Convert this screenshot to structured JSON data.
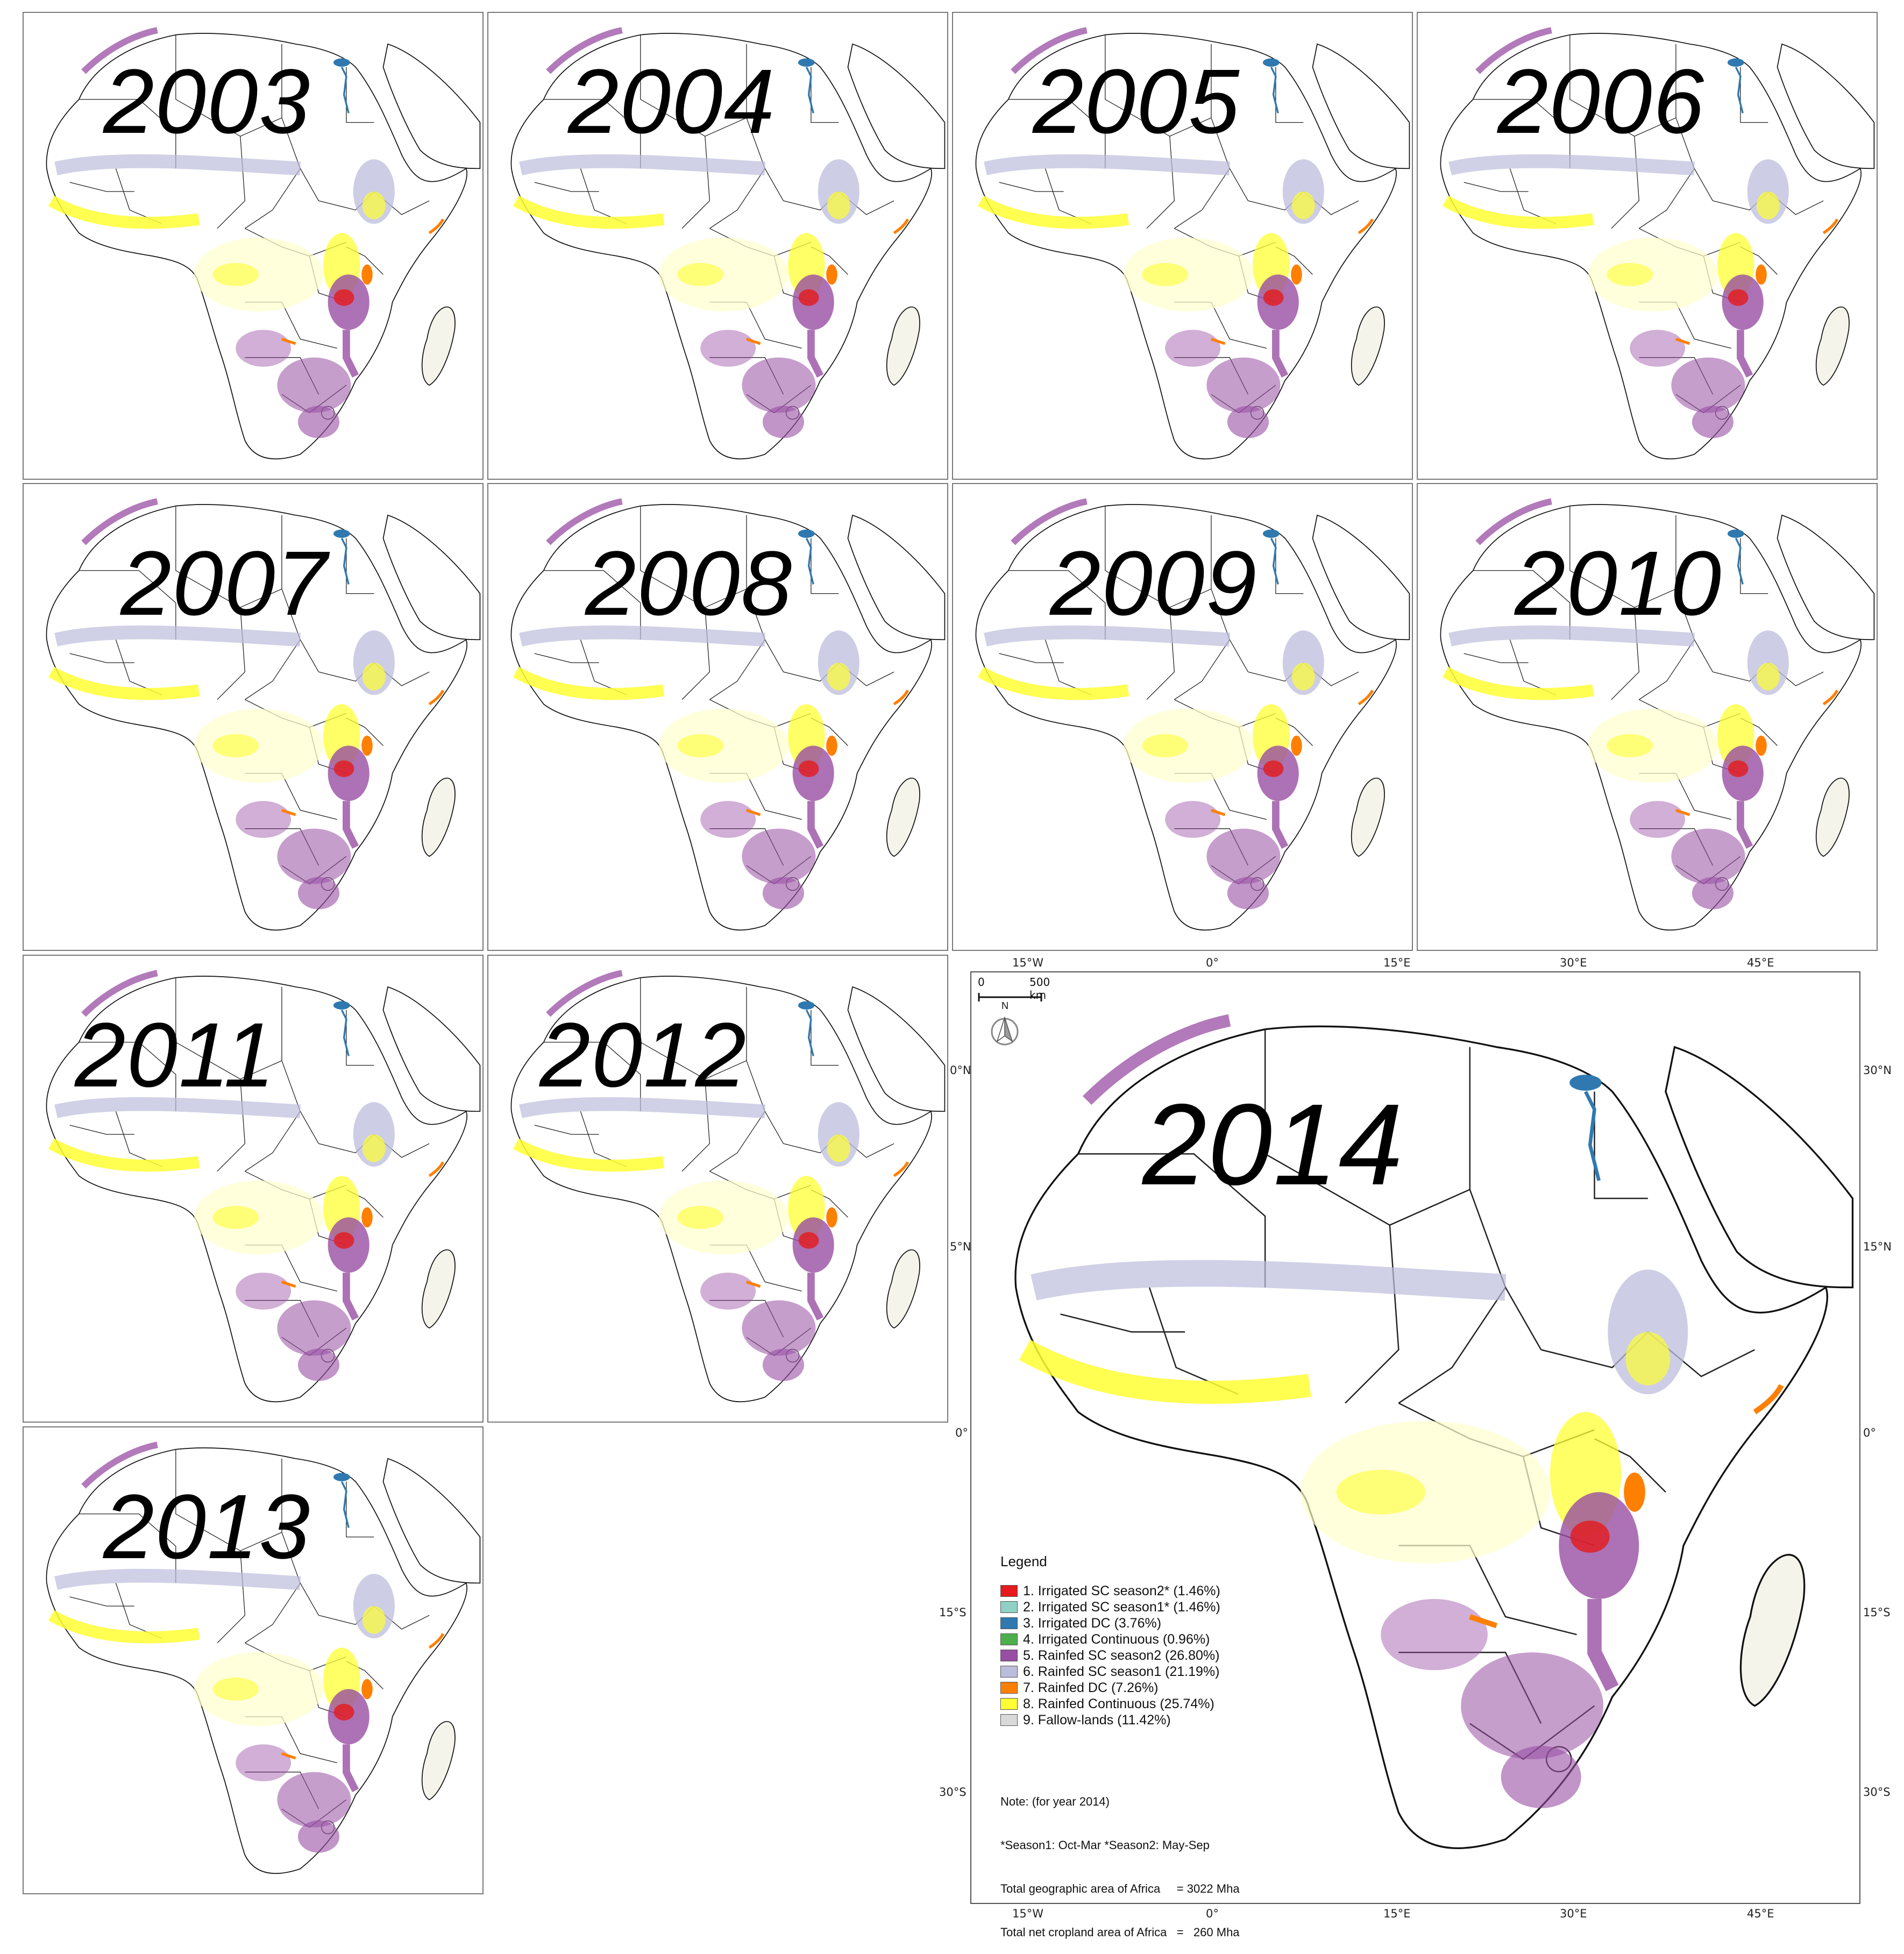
{
  "small_maps": [
    {
      "year": "2003"
    },
    {
      "year": "2004"
    },
    {
      "year": "2005"
    },
    {
      "year": "2006"
    },
    {
      "year": "2007"
    },
    {
      "year": "2008"
    },
    {
      "year": "2009"
    },
    {
      "year": "2010"
    },
    {
      "year": "2011"
    },
    {
      "year": "2012"
    },
    {
      "year": "2013"
    }
  ],
  "main_map": {
    "year": "2014",
    "scale": {
      "zero": "0",
      "distance": "500 km"
    },
    "north_label": "N",
    "lon_ticks": [
      "15°W",
      "0°",
      "15°E",
      "30°E",
      "45°E"
    ],
    "lat_ticks": [
      "30°N",
      "15°N",
      "0°",
      "15°S",
      "30°S"
    ],
    "left_lat_ticks": [
      "0°N",
      "5°N",
      "0°",
      "15°S",
      "30°S"
    ],
    "legend": {
      "title": "Legend",
      "items": [
        {
          "label": "1. Irrigated SC season2* (1.46%)",
          "color": "#e41a1c"
        },
        {
          "label": "2. Irrigated SC season1* (1.46%)",
          "color": "#8fd1c4"
        },
        {
          "label": "3. Irrigated DC (3.76%)",
          "color": "#2f79b0"
        },
        {
          "label": "4. Irrigated Continuous (0.96%)",
          "color": "#4daf4a"
        },
        {
          "label": "5. Rainfed SC season2 (26.80%)",
          "color": "#984ea3"
        },
        {
          "label": "6. Rainfed SC season1 (21.19%)",
          "color": "#bcbddc"
        },
        {
          "label": "7. Rainfed DC (7.26%)",
          "color": "#ff7f00"
        },
        {
          "label": "8. Rainfed Continuous (25.74%)",
          "color": "#ffff33"
        },
        {
          "label": "9. Fallow-lands (11.42%)",
          "color": "#d9d9d9"
        }
      ]
    },
    "notes": [
      "Note: (for year 2014)",
      "*Season1: Oct-Mar *Season2: May-Sep",
      "Total geographic area of Africa     = 3022 Mha",
      "Total net cropland area of Africa   =   260 Mha"
    ]
  }
}
